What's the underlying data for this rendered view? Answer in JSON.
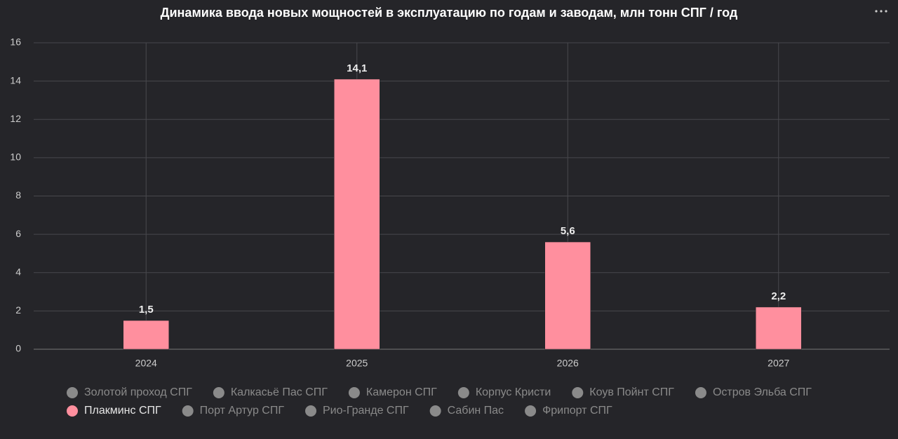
{
  "chart_data": {
    "type": "bar",
    "title": "Динамика ввода новых мощностей в эксплуатацию по годам и заводам, млн тонн СПГ / год",
    "categories": [
      "2024",
      "2025",
      "2026",
      "2027"
    ],
    "series": [
      {
        "name": "Золотой проход СПГ",
        "visible": false,
        "color": "#8a8a8a",
        "values": [
          null,
          null,
          null,
          null
        ]
      },
      {
        "name": "Калкасьё Пас СПГ",
        "visible": false,
        "color": "#8a8a8a",
        "values": [
          null,
          null,
          null,
          null
        ]
      },
      {
        "name": "Камерон СПГ",
        "visible": false,
        "color": "#8a8a8a",
        "values": [
          null,
          null,
          null,
          null
        ]
      },
      {
        "name": "Корпус Кристи",
        "visible": false,
        "color": "#8a8a8a",
        "values": [
          null,
          null,
          null,
          null
        ]
      },
      {
        "name": "Коув Пойнт СПГ",
        "visible": false,
        "color": "#8a8a8a",
        "values": [
          null,
          null,
          null,
          null
        ]
      },
      {
        "name": "Остров Эльба СПГ",
        "visible": false,
        "color": "#8a8a8a",
        "values": [
          null,
          null,
          null,
          null
        ]
      },
      {
        "name": "Плакминс СПГ",
        "visible": true,
        "color": "#ff8f9e",
        "values": [
          1.5,
          14.1,
          5.6,
          2.2
        ],
        "value_labels": [
          "1,5",
          "14,1",
          "5,6",
          "2,2"
        ]
      },
      {
        "name": "Порт Артур СПГ",
        "visible": false,
        "color": "#8a8a8a",
        "values": [
          null,
          null,
          null,
          null
        ]
      },
      {
        "name": "Рио-Гранде СПГ",
        "visible": false,
        "color": "#8a8a8a",
        "values": [
          null,
          null,
          null,
          null
        ]
      },
      {
        "name": "Сабин Пас",
        "visible": false,
        "color": "#8a8a8a",
        "values": [
          null,
          null,
          null,
          null
        ]
      },
      {
        "name": "Фрипорт СПГ",
        "visible": false,
        "color": "#8a8a8a",
        "values": [
          null,
          null,
          null,
          null
        ]
      }
    ],
    "ylim": [
      0,
      16
    ],
    "yticks": [
      0,
      2,
      4,
      6,
      8,
      10,
      12,
      14,
      16
    ],
    "grid": true
  }
}
